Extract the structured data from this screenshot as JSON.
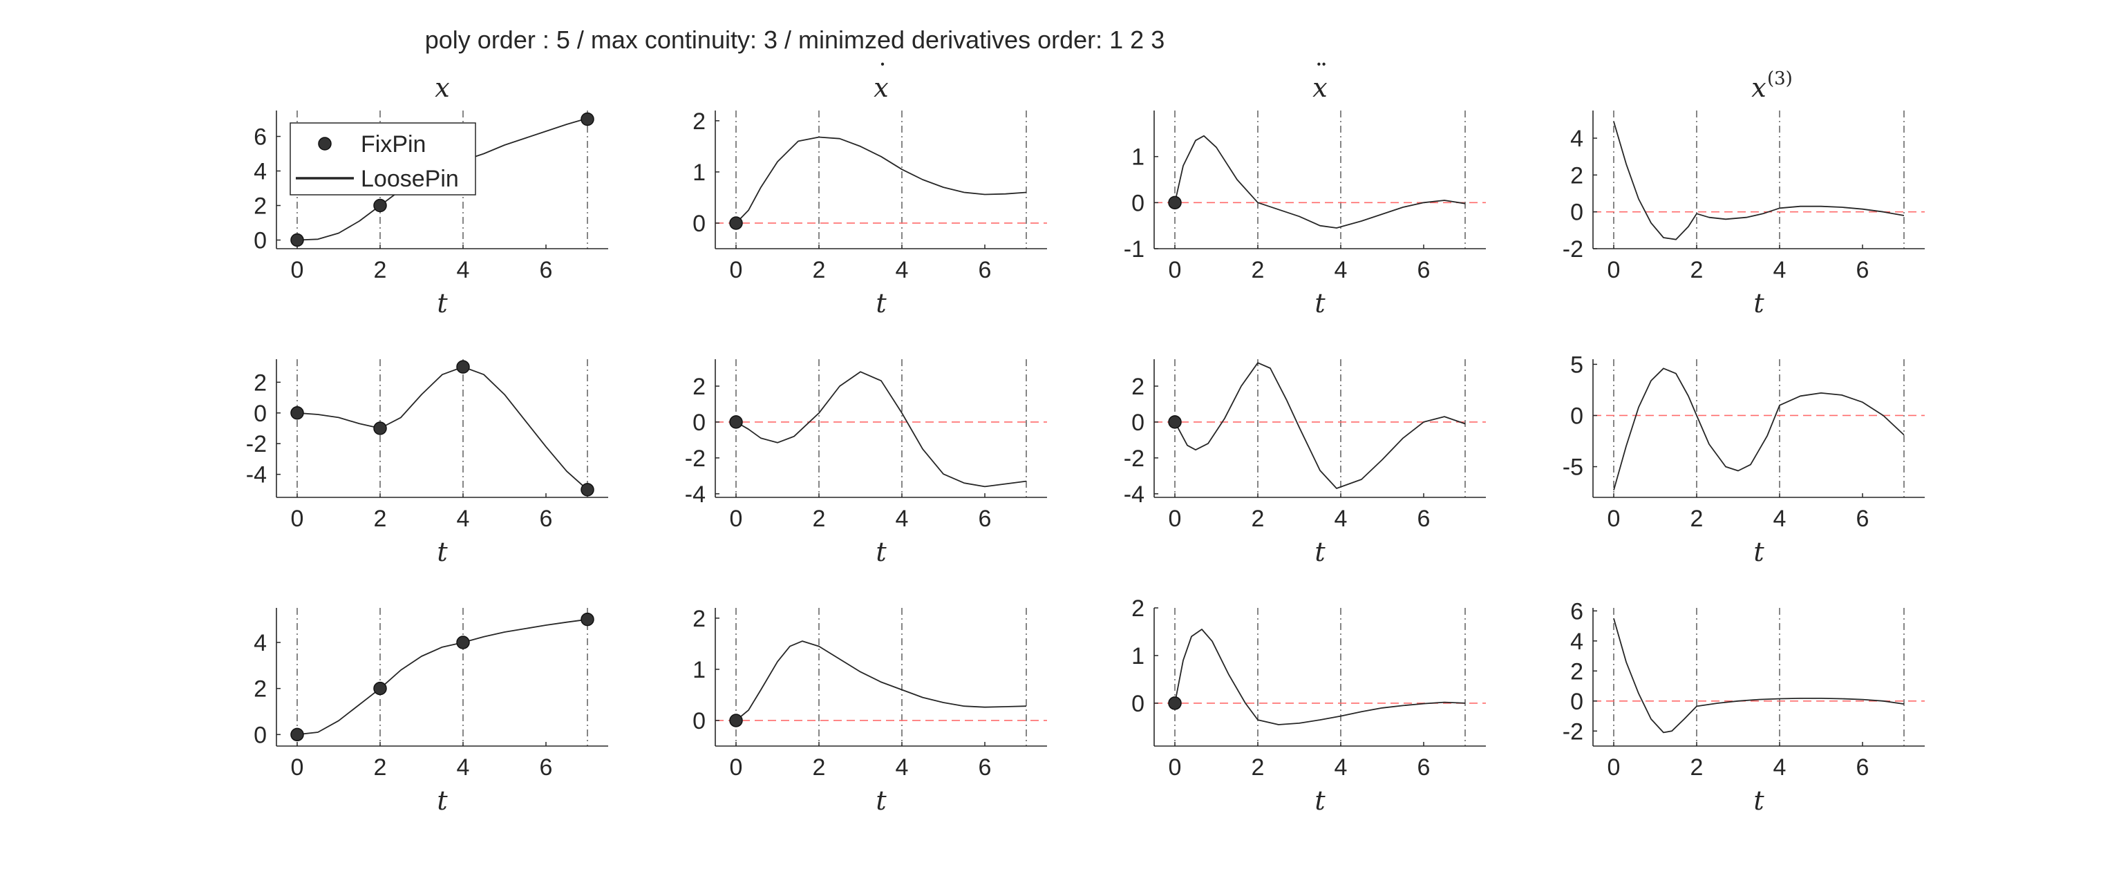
{
  "figure": {
    "title": "poly order : 5 / max continuity: 3 / minimzed derivatives order: 1  2  3",
    "columns": [
      {
        "symbol": "x",
        "accent": ""
      },
      {
        "symbol": "x",
        "accent": "˙"
      },
      {
        "symbol": "x",
        "accent": "¨"
      },
      {
        "symbol": "x",
        "accent": "",
        "superscript": "(3)"
      }
    ],
    "xlabel": "t",
    "colors": {
      "curve": "#262626",
      "marker": "#333333",
      "zero_line": "#ff6b6b",
      "segment_line": "#444444",
      "axis": "#262626"
    },
    "legend": {
      "placement": "inside top-left of first axes",
      "items": [
        {
          "label": "FixPin",
          "type": "marker"
        },
        {
          "label": "LoosePin",
          "type": "line"
        }
      ]
    }
  },
  "chart_data": [
    {
      "type": "line",
      "row": 1,
      "col": 1,
      "xlim": [
        -0.5,
        7.5
      ],
      "ylim": [
        -0.5,
        7.5
      ],
      "xticks": [
        0,
        2,
        4,
        6
      ],
      "yticks": [
        0,
        2,
        4,
        6
      ],
      "zero_line": false,
      "vlines": [
        0,
        2,
        4,
        7
      ],
      "points": [
        [
          0,
          0
        ],
        [
          2,
          2
        ],
        [
          4,
          4
        ],
        [
          7,
          7
        ]
      ],
      "curve": [
        [
          0,
          0
        ],
        [
          0.5,
          0.05
        ],
        [
          1,
          0.4
        ],
        [
          1.5,
          1.1
        ],
        [
          2,
          2
        ],
        [
          2.5,
          2.9
        ],
        [
          3,
          3.6
        ],
        [
          3.5,
          4.1
        ],
        [
          4,
          4.6
        ],
        [
          4.5,
          5.0
        ],
        [
          5,
          5.5
        ],
        [
          5.5,
          5.9
        ],
        [
          6,
          6.3
        ],
        [
          6.5,
          6.7
        ],
        [
          7,
          7.05
        ]
      ]
    },
    {
      "type": "line",
      "row": 1,
      "col": 2,
      "xlim": [
        -0.5,
        7.5
      ],
      "ylim": [
        -0.5,
        2.2
      ],
      "xticks": [
        0,
        2,
        4,
        6
      ],
      "yticks": [
        0,
        1,
        2
      ],
      "zero_line": true,
      "vlines": [
        0,
        2,
        4,
        7
      ],
      "points": [
        [
          0,
          0
        ]
      ],
      "curve": [
        [
          0,
          0
        ],
        [
          0.3,
          0.25
        ],
        [
          0.6,
          0.7
        ],
        [
          1,
          1.2
        ],
        [
          1.5,
          1.6
        ],
        [
          2,
          1.68
        ],
        [
          2.5,
          1.65
        ],
        [
          3,
          1.5
        ],
        [
          3.5,
          1.3
        ],
        [
          4,
          1.05
        ],
        [
          4.5,
          0.85
        ],
        [
          5,
          0.7
        ],
        [
          5.5,
          0.6
        ],
        [
          6,
          0.56
        ],
        [
          6.5,
          0.57
        ],
        [
          7,
          0.6
        ]
      ]
    },
    {
      "type": "line",
      "row": 1,
      "col": 3,
      "xlim": [
        -0.5,
        7.5
      ],
      "ylim": [
        -1,
        2
      ],
      "xticks": [
        0,
        2,
        4,
        6
      ],
      "yticks": [
        -1,
        0,
        1
      ],
      "zero_line": true,
      "vlines": [
        0,
        2,
        4,
        7
      ],
      "points": [
        [
          0,
          0
        ]
      ],
      "curve": [
        [
          0,
          0
        ],
        [
          0.2,
          0.8
        ],
        [
          0.5,
          1.35
        ],
        [
          0.7,
          1.45
        ],
        [
          1,
          1.2
        ],
        [
          1.5,
          0.5
        ],
        [
          2,
          0
        ],
        [
          2.5,
          -0.15
        ],
        [
          3,
          -0.3
        ],
        [
          3.5,
          -0.5
        ],
        [
          3.9,
          -0.55
        ],
        [
          4.5,
          -0.4
        ],
        [
          5,
          -0.25
        ],
        [
          5.5,
          -0.1
        ],
        [
          6,
          0
        ],
        [
          6.5,
          0.05
        ],
        [
          7,
          -0.02
        ]
      ]
    },
    {
      "type": "line",
      "row": 1,
      "col": 4,
      "xlim": [
        -0.5,
        7.5
      ],
      "ylim": [
        -2,
        5.5
      ],
      "xticks": [
        0,
        2,
        4,
        6
      ],
      "yticks": [
        -2,
        0,
        2,
        4
      ],
      "zero_line": true,
      "vlines": [
        0,
        2,
        4,
        7
      ],
      "points": [],
      "curve": [
        [
          0,
          4.9
        ],
        [
          0.3,
          2.6
        ],
        [
          0.6,
          0.7
        ],
        [
          0.9,
          -0.6
        ],
        [
          1.2,
          -1.4
        ],
        [
          1.5,
          -1.5
        ],
        [
          1.8,
          -0.8
        ],
        [
          2,
          -0.1
        ],
        [
          2.3,
          -0.3
        ],
        [
          2.7,
          -0.4
        ],
        [
          3.2,
          -0.3
        ],
        [
          3.6,
          -0.1
        ],
        [
          4,
          0.2
        ],
        [
          4.5,
          0.3
        ],
        [
          5,
          0.3
        ],
        [
          5.5,
          0.25
        ],
        [
          6,
          0.15
        ],
        [
          6.5,
          0
        ],
        [
          7,
          -0.2
        ]
      ]
    },
    {
      "type": "line",
      "row": 2,
      "col": 1,
      "xlim": [
        -0.5,
        7.5
      ],
      "ylim": [
        -5.5,
        3.5
      ],
      "xticks": [
        0,
        2,
        4,
        6
      ],
      "yticks": [
        -4,
        -2,
        0,
        2
      ],
      "zero_line": false,
      "vlines": [
        0,
        2,
        4,
        7
      ],
      "points": [
        [
          0,
          0
        ],
        [
          2,
          -1
        ],
        [
          4,
          3
        ],
        [
          7,
          -5
        ]
      ],
      "curve": [
        [
          0,
          0
        ],
        [
          0.5,
          -0.1
        ],
        [
          1,
          -0.3
        ],
        [
          1.5,
          -0.7
        ],
        [
          2,
          -1
        ],
        [
          2.5,
          -0.3
        ],
        [
          3,
          1.2
        ],
        [
          3.5,
          2.5
        ],
        [
          4,
          3
        ],
        [
          4.5,
          2.5
        ],
        [
          5,
          1.2
        ],
        [
          5.5,
          -0.5
        ],
        [
          6,
          -2.2
        ],
        [
          6.5,
          -3.8
        ],
        [
          7,
          -5
        ]
      ]
    },
    {
      "type": "line",
      "row": 2,
      "col": 2,
      "xlim": [
        -0.5,
        7.5
      ],
      "ylim": [
        -4.2,
        3.5
      ],
      "xticks": [
        0,
        2,
        4,
        6
      ],
      "yticks": [
        -4,
        -2,
        0,
        2
      ],
      "zero_line": true,
      "vlines": [
        0,
        2,
        4,
        7
      ],
      "points": [
        [
          0,
          0
        ]
      ],
      "curve": [
        [
          0,
          0
        ],
        [
          0.3,
          -0.4
        ],
        [
          0.6,
          -0.9
        ],
        [
          1,
          -1.15
        ],
        [
          1.4,
          -0.8
        ],
        [
          2,
          0.5
        ],
        [
          2.5,
          2.0
        ],
        [
          3,
          2.8
        ],
        [
          3.5,
          2.3
        ],
        [
          4,
          0.5
        ],
        [
          4.5,
          -1.5
        ],
        [
          5,
          -2.9
        ],
        [
          5.5,
          -3.4
        ],
        [
          6,
          -3.6
        ],
        [
          6.5,
          -3.45
        ],
        [
          7,
          -3.3
        ]
      ]
    },
    {
      "type": "line",
      "row": 2,
      "col": 3,
      "xlim": [
        -0.5,
        7.5
      ],
      "ylim": [
        -4.2,
        3.5
      ],
      "xticks": [
        0,
        2,
        4,
        6
      ],
      "yticks": [
        -4,
        -2,
        0,
        2
      ],
      "zero_line": true,
      "vlines": [
        0,
        2,
        4,
        7
      ],
      "points": [
        [
          0,
          0
        ]
      ],
      "curve": [
        [
          0,
          0
        ],
        [
          0.3,
          -1.3
        ],
        [
          0.5,
          -1.55
        ],
        [
          0.8,
          -1.2
        ],
        [
          1.2,
          0.2
        ],
        [
          1.6,
          2.0
        ],
        [
          2,
          3.3
        ],
        [
          2.3,
          3.0
        ],
        [
          2.7,
          1.2
        ],
        [
          3,
          -0.3
        ],
        [
          3.5,
          -2.7
        ],
        [
          3.9,
          -3.7
        ],
        [
          4.5,
          -3.2
        ],
        [
          5,
          -2.1
        ],
        [
          5.5,
          -0.9
        ],
        [
          6,
          0
        ],
        [
          6.5,
          0.3
        ],
        [
          7,
          -0.1
        ]
      ]
    },
    {
      "type": "line",
      "row": 2,
      "col": 4,
      "xlim": [
        -0.5,
        7.5
      ],
      "ylim": [
        -8,
        5.5
      ],
      "xticks": [
        0,
        2,
        4,
        6
      ],
      "yticks": [
        -5,
        0,
        5
      ],
      "zero_line": true,
      "vlines": [
        0,
        2,
        4,
        7
      ],
      "points": [],
      "curve": [
        [
          0,
          -7.3
        ],
        [
          0.3,
          -3.0
        ],
        [
          0.6,
          0.8
        ],
        [
          0.9,
          3.4
        ],
        [
          1.2,
          4.6
        ],
        [
          1.5,
          4.1
        ],
        [
          1.8,
          1.9
        ],
        [
          2,
          0
        ],
        [
          2.3,
          -2.8
        ],
        [
          2.7,
          -5.0
        ],
        [
          3,
          -5.4
        ],
        [
          3.3,
          -4.8
        ],
        [
          3.7,
          -2.0
        ],
        [
          4,
          1.0
        ],
        [
          4.5,
          1.9
        ],
        [
          5,
          2.2
        ],
        [
          5.5,
          2.0
        ],
        [
          6,
          1.3
        ],
        [
          6.5,
          0
        ],
        [
          7,
          -1.9
        ]
      ]
    },
    {
      "type": "line",
      "row": 3,
      "col": 1,
      "xlim": [
        -0.5,
        7.5
      ],
      "ylim": [
        -0.5,
        5.5
      ],
      "xticks": [
        0,
        2,
        4,
        6
      ],
      "yticks": [
        0,
        2,
        4
      ],
      "zero_line": false,
      "vlines": [
        0,
        2,
        4,
        7
      ],
      "points": [
        [
          0,
          0
        ],
        [
          2,
          2
        ],
        [
          4,
          4
        ],
        [
          7,
          5
        ]
      ],
      "curve": [
        [
          0,
          0
        ],
        [
          0.5,
          0.1
        ],
        [
          1,
          0.6
        ],
        [
          1.5,
          1.3
        ],
        [
          2,
          2
        ],
        [
          2.5,
          2.8
        ],
        [
          3,
          3.4
        ],
        [
          3.5,
          3.8
        ],
        [
          4,
          4
        ],
        [
          4.5,
          4.25
        ],
        [
          5,
          4.45
        ],
        [
          5.5,
          4.6
        ],
        [
          6,
          4.75
        ],
        [
          6.5,
          4.88
        ],
        [
          7,
          5
        ]
      ]
    },
    {
      "type": "line",
      "row": 3,
      "col": 2,
      "xlim": [
        -0.5,
        7.5
      ],
      "ylim": [
        -0.5,
        2.2
      ],
      "xticks": [
        0,
        2,
        4,
        6
      ],
      "yticks": [
        0,
        1,
        2
      ],
      "zero_line": true,
      "vlines": [
        0,
        2,
        4,
        7
      ],
      "points": [
        [
          0,
          0
        ]
      ],
      "curve": [
        [
          0,
          0
        ],
        [
          0.3,
          0.2
        ],
        [
          0.6,
          0.6
        ],
        [
          1,
          1.15
        ],
        [
          1.3,
          1.45
        ],
        [
          1.6,
          1.55
        ],
        [
          2,
          1.45
        ],
        [
          2.5,
          1.2
        ],
        [
          3,
          0.95
        ],
        [
          3.5,
          0.75
        ],
        [
          4,
          0.6
        ],
        [
          4.5,
          0.45
        ],
        [
          5,
          0.35
        ],
        [
          5.5,
          0.28
        ],
        [
          6,
          0.26
        ],
        [
          6.5,
          0.27
        ],
        [
          7,
          0.28
        ]
      ]
    },
    {
      "type": "line",
      "row": 3,
      "col": 3,
      "xlim": [
        -0.5,
        7.5
      ],
      "ylim": [
        -0.9,
        2
      ],
      "xticks": [
        0,
        2,
        4,
        6
      ],
      "yticks": [
        0,
        1,
        2
      ],
      "zero_line": true,
      "vlines": [
        0,
        2,
        4,
        7
      ],
      "points": [
        [
          0,
          0
        ]
      ],
      "curve": [
        [
          0,
          0
        ],
        [
          0.2,
          0.9
        ],
        [
          0.4,
          1.4
        ],
        [
          0.65,
          1.55
        ],
        [
          0.9,
          1.3
        ],
        [
          1.3,
          0.6
        ],
        [
          1.7,
          0.0
        ],
        [
          2,
          -0.35
        ],
        [
          2.5,
          -0.45
        ],
        [
          3,
          -0.42
        ],
        [
          3.5,
          -0.35
        ],
        [
          4,
          -0.27
        ],
        [
          4.5,
          -0.18
        ],
        [
          5,
          -0.1
        ],
        [
          5.5,
          -0.05
        ],
        [
          6,
          -0.01
        ],
        [
          6.5,
          0.02
        ],
        [
          7,
          0
        ]
      ]
    },
    {
      "type": "line",
      "row": 3,
      "col": 4,
      "xlim": [
        -0.5,
        7.5
      ],
      "ylim": [
        -3,
        6.2
      ],
      "xticks": [
        0,
        2,
        4,
        6
      ],
      "yticks": [
        -2,
        0,
        2,
        4,
        6
      ],
      "zero_line": true,
      "vlines": [
        0,
        2,
        4,
        7
      ],
      "points": [],
      "curve": [
        [
          0,
          5.5
        ],
        [
          0.3,
          2.6
        ],
        [
          0.6,
          0.5
        ],
        [
          0.9,
          -1.2
        ],
        [
          1.2,
          -2.1
        ],
        [
          1.4,
          -2.0
        ],
        [
          1.7,
          -1.2
        ],
        [
          2,
          -0.35
        ],
        [
          2.5,
          -0.15
        ],
        [
          3,
          0
        ],
        [
          3.5,
          0.1
        ],
        [
          4,
          0.15
        ],
        [
          4.5,
          0.18
        ],
        [
          5,
          0.18
        ],
        [
          5.5,
          0.15
        ],
        [
          6,
          0.1
        ],
        [
          6.5,
          0
        ],
        [
          7,
          -0.2
        ]
      ]
    }
  ]
}
